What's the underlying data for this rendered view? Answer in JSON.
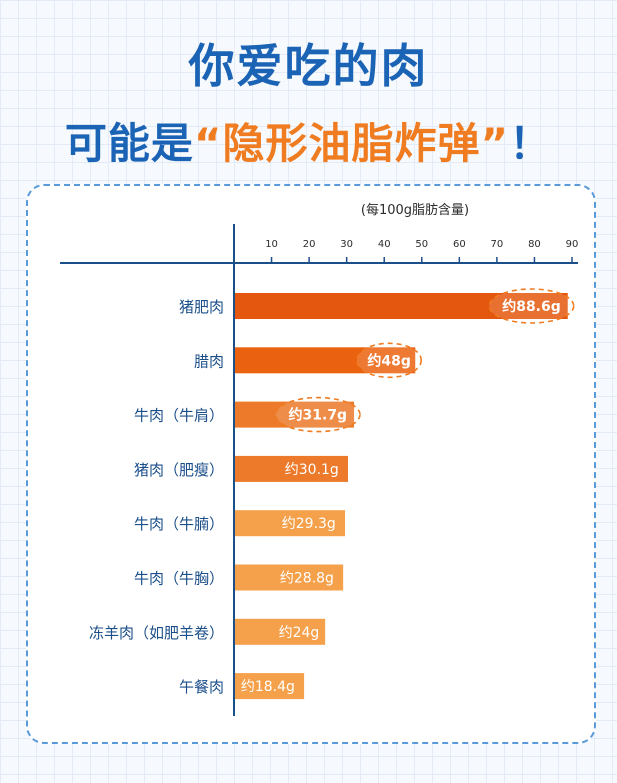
{
  "title": {
    "line1": "你爱吃的肉",
    "line2_prefix": "可能是",
    "line2_highlight": "“隐形油脂炸弹”",
    "line2_suffix": "！"
  },
  "colors": {
    "title_blue": "#1b63b4",
    "accent_orange": "#f07c22",
    "bar_dark": "#e4570e",
    "bar_light": "#f5a04a",
    "axis_blue": "#1b4f8a",
    "panel_border": "#5a9ad8"
  },
  "chart_data": {
    "type": "bar",
    "orientation": "horizontal",
    "unit_note": "(每100g脂肪含量)",
    "xlim": [
      0,
      90
    ],
    "x_ticks": [
      10,
      20,
      30,
      40,
      50,
      60,
      70,
      80,
      90
    ],
    "categories": [
      "猪肥肉",
      "腊肉",
      "牛肉（牛肩）",
      "猪肉（肥瘦）",
      "牛肉（牛腩）",
      "牛肉（牛胸）",
      "冻羊肉（如肥羊卷）",
      "午餐肉"
    ],
    "values": [
      88.6,
      48,
      31.7,
      30.1,
      29.3,
      28.8,
      24,
      18.4
    ],
    "data_labels": [
      "约88.6g",
      "约48g",
      "约31.7g",
      "约30.1g",
      "约29.3g",
      "约28.8g",
      "约24g",
      "约18.4g"
    ],
    "highlighted": [
      true,
      true,
      true,
      false,
      false,
      false,
      false,
      false
    ],
    "grid": false
  }
}
